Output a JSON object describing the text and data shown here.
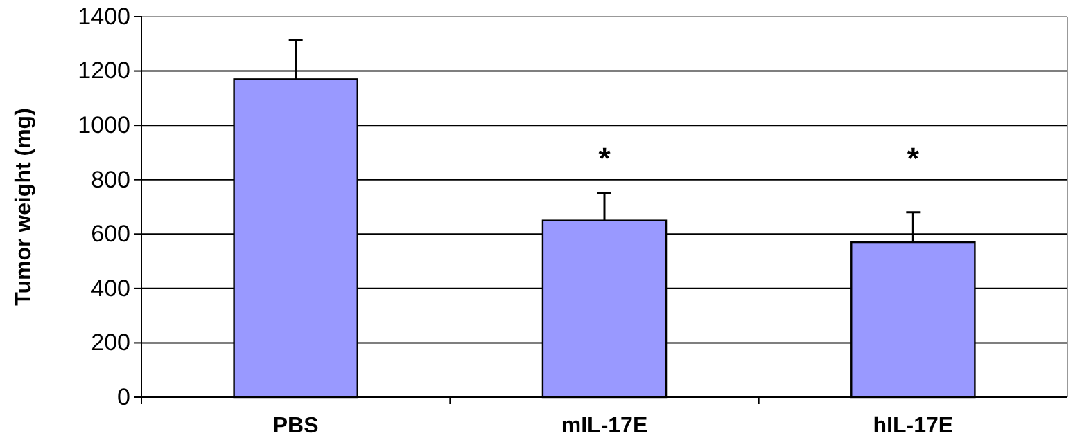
{
  "chart_data": {
    "type": "bar",
    "ylabel": "Tumor weight (mg)",
    "categories": [
      "PBS",
      "mIL-17E",
      "hIL-17E"
    ],
    "values": [
      1170,
      650,
      570
    ],
    "errors": [
      [
        1170,
        1315
      ],
      [
        650,
        750
      ],
      [
        570,
        680
      ]
    ],
    "color": "#9999ff",
    "ylim": [
      0,
      1400
    ],
    "yticks": [
      0,
      200,
      400,
      600,
      800,
      1000,
      1200,
      1400
    ],
    "grid": "y",
    "annotations": [
      "*",
      "*"
    ]
  }
}
